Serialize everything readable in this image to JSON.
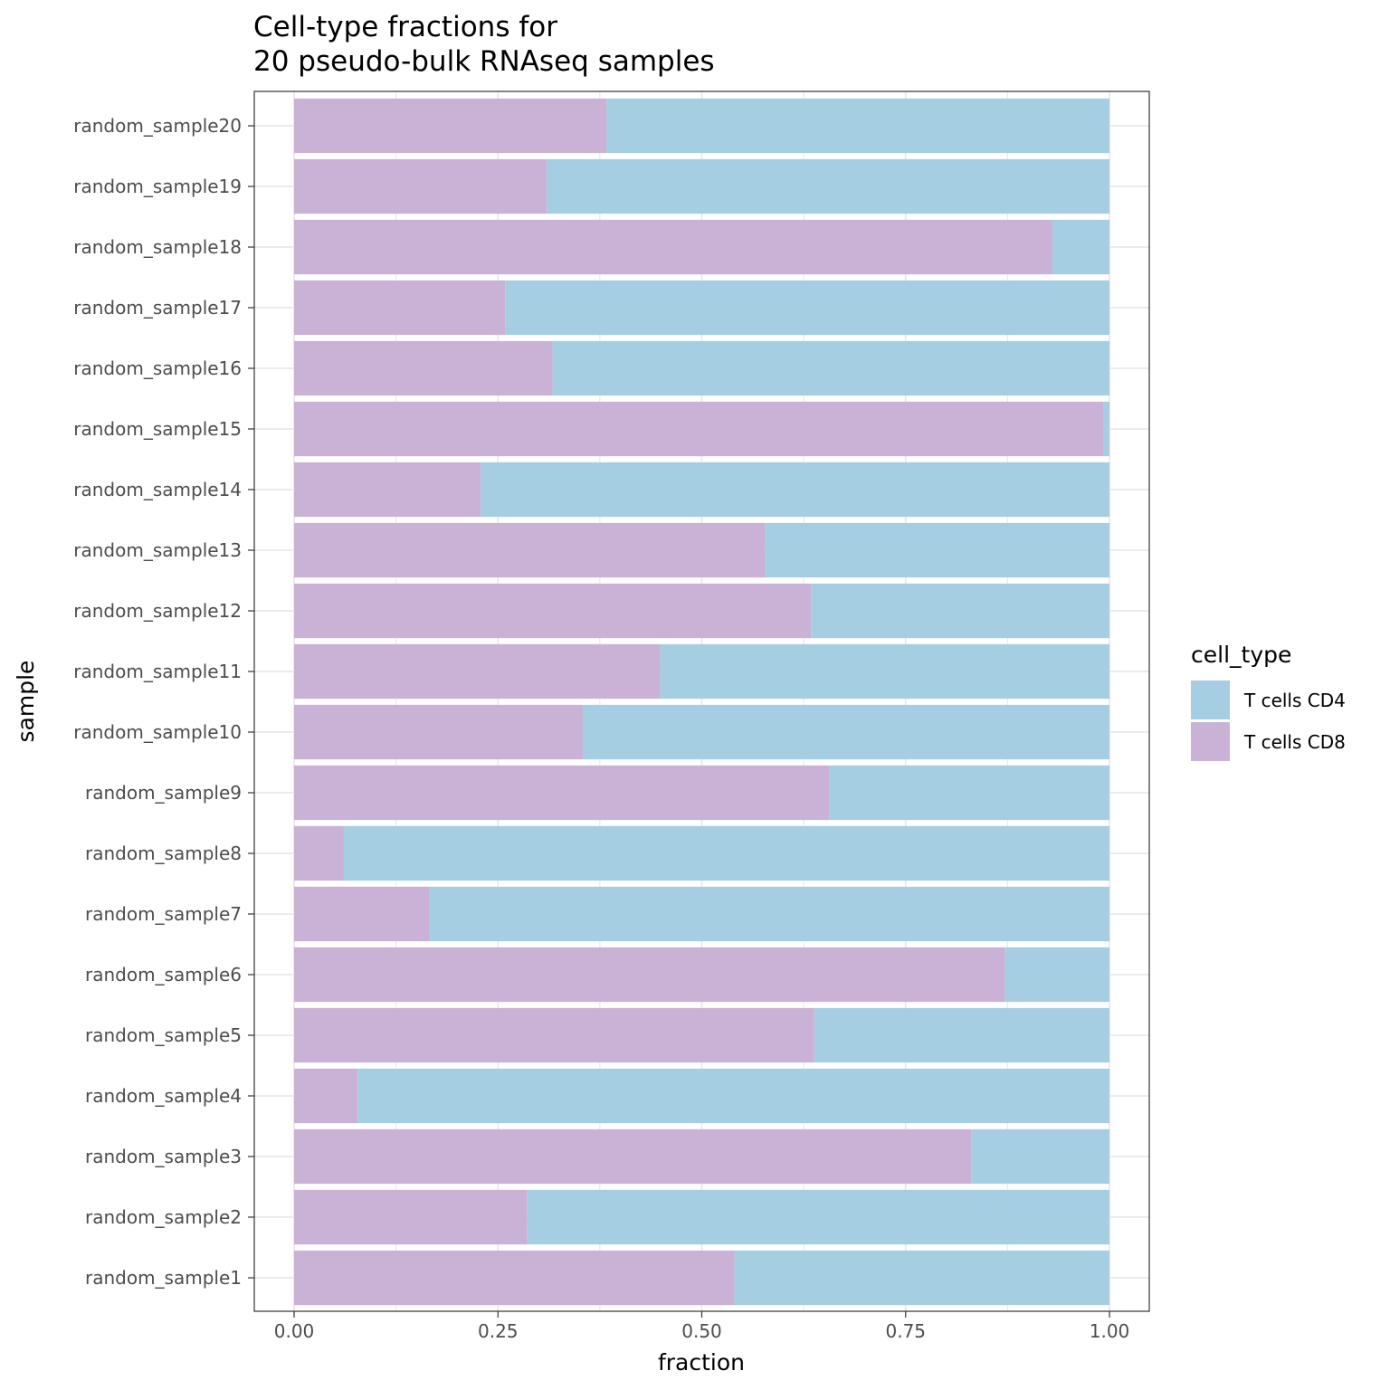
{
  "chart_data": {
    "type": "bar",
    "orientation": "horizontal",
    "stacked": true,
    "title_lines": [
      "Cell-type fractions for",
      "20 pseudo-bulk RNAseq samples"
    ],
    "xlabel": "fraction",
    "ylabel": "sample",
    "xlim": [
      0,
      1
    ],
    "xticks": [
      "0.00",
      "0.25",
      "0.50",
      "0.75",
      "1.00"
    ],
    "grid": true,
    "legend_position": "right",
    "legend_title": "cell_type",
    "categories": [
      "random_sample1",
      "random_sample2",
      "random_sample3",
      "random_sample4",
      "random_sample5",
      "random_sample6",
      "random_sample7",
      "random_sample8",
      "random_sample9",
      "random_sample10",
      "random_sample11",
      "random_sample12",
      "random_sample13",
      "random_sample14",
      "random_sample15",
      "random_sample16",
      "random_sample17",
      "random_sample18",
      "random_sample19",
      "random_sample20"
    ],
    "series": [
      {
        "name": "T cells CD4",
        "color": "#a6cee3",
        "values": [
          0.46,
          0.714,
          0.169,
          0.922,
          0.362,
          0.128,
          0.834,
          0.939,
          0.344,
          0.646,
          0.551,
          0.366,
          0.422,
          0.771,
          0.007,
          0.683,
          0.741,
          0.07,
          0.69,
          0.617
        ]
      },
      {
        "name": "T cells CD8",
        "color": "#cab2d6",
        "values": [
          0.54,
          0.286,
          0.831,
          0.078,
          0.638,
          0.872,
          0.166,
          0.061,
          0.656,
          0.354,
          0.449,
          0.634,
          0.578,
          0.229,
          0.993,
          0.317,
          0.259,
          0.93,
          0.31,
          0.383
        ]
      }
    ]
  }
}
